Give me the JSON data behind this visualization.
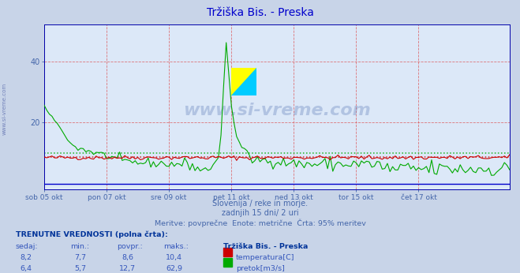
{
  "title": "Tržiška Bis. - Preska",
  "title_color": "#0000cc",
  "fig_bg_color": "#c8d4e8",
  "plot_bg_color": "#dce8f8",
  "grid_color": "#dd4444",
  "temp_color": "#cc0000",
  "flow_color": "#00aa00",
  "axis_color": "#0000aa",
  "tick_color": "#4466aa",
  "text_color": "#4466aa",
  "xticklabels": [
    "sob 05 okt",
    "pon 07 okt",
    "sre 09 okt",
    "pet 11 okt",
    "ned 13 okt",
    "tor 15 okt",
    "čet 17 okt"
  ],
  "yticks": [
    20,
    40
  ],
  "ymax": 52,
  "ymin": -2,
  "subtitle1": "Slovenija / reke in morje.",
  "subtitle2": "zadnjih 15 dni/ 2 uri",
  "subtitle3": "Meritve: povprečne  Enote: metrične  Črta: 95% meritev",
  "footer_bold": "TRENUTNE VREDNOSTI (polna črta):",
  "col_headers": [
    "sedaj:",
    "min.:",
    "povpr.:",
    "maks.:"
  ],
  "col_header_station": "Tržiška Bis. - Preska",
  "row1_values": [
    "8,2",
    "7,7",
    "8,6",
    "10,4"
  ],
  "row2_values": [
    "6,4",
    "5,7",
    "12,7",
    "62,9"
  ],
  "legend1": "temperatura[C]",
  "legend2": "pretok[m3/s]",
  "temp_avg_y": 8.6,
  "flow_avg_y": 12.7,
  "watermark": "www.si-vreme.com",
  "n_points": 180,
  "xtick_indices": [
    0,
    24,
    48,
    72,
    96,
    120,
    144
  ]
}
